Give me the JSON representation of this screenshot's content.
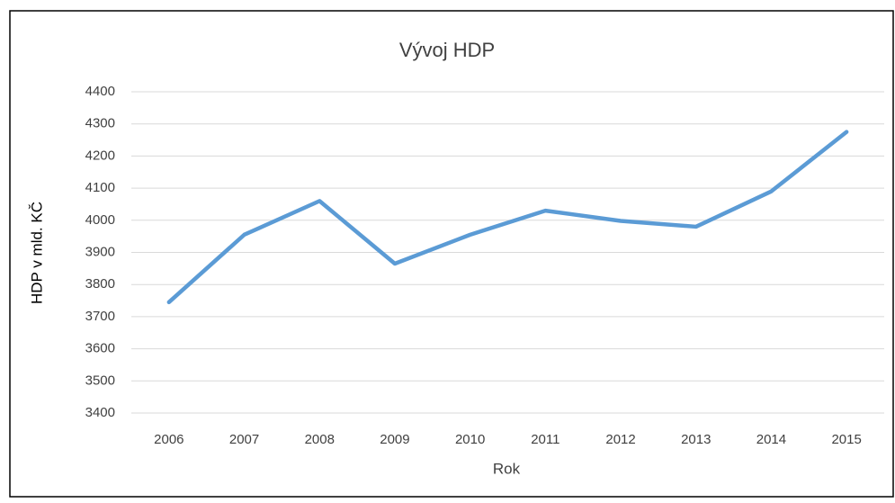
{
  "chart_data": {
    "type": "line",
    "title": "Vývoj HDP",
    "x_label": "Rok",
    "y_label": "HDP v mld. KČ",
    "categories": [
      "2006",
      "2007",
      "2008",
      "2009",
      "2010",
      "2011",
      "2012",
      "2013",
      "2014",
      "2015"
    ],
    "series": [
      {
        "name": "HDP",
        "color": "#5b9bd5",
        "values": [
          3745,
          3955,
          4060,
          3865,
          3955,
          4030,
          3998,
          3980,
          4090,
          4275
        ]
      }
    ],
    "ylim": [
      3400,
      4400
    ],
    "yticks": [
      3400,
      3500,
      3600,
      3700,
      3800,
      3900,
      4000,
      4100,
      4200,
      4300,
      4400
    ],
    "grid": true
  }
}
